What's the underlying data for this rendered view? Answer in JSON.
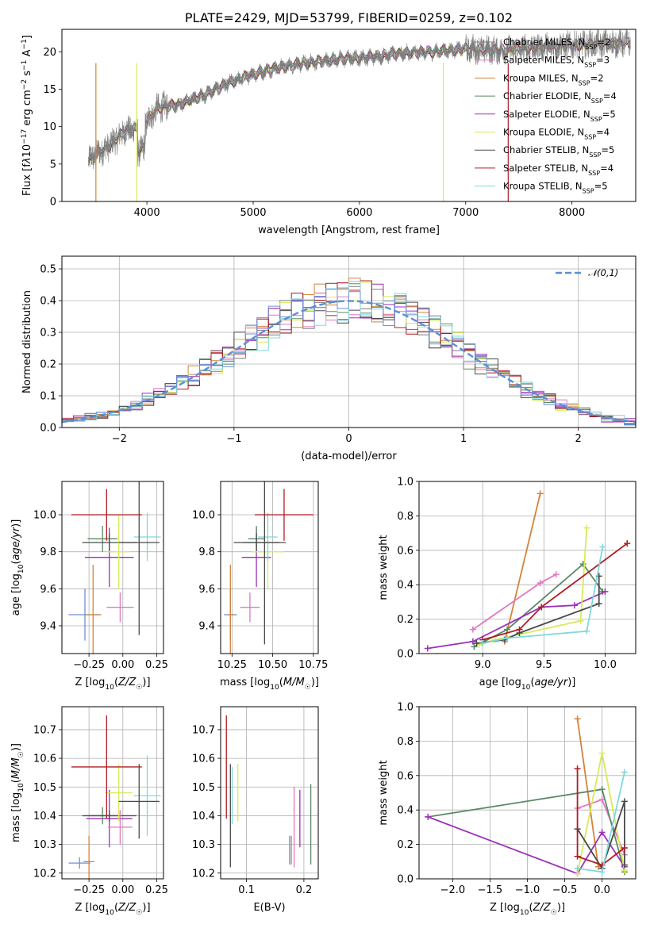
{
  "chart_data": [
    {
      "id": "spectrum",
      "type": "line",
      "title": "PLATE=2429, MJD=53799, FIBERID=0259, z=0.102",
      "xlabel": "wavelength [Angstrom, rest frame]",
      "ylabel": "Flux [f_λ10^-17 erg cm^-2 s^-1 A^-1]",
      "xlim": [
        3200,
        8600
      ],
      "ylim": [
        0,
        23
      ],
      "xticks": [
        4000,
        5000,
        6000,
        7000,
        8000
      ],
      "yticks": [
        0,
        5,
        10,
        15,
        20
      ],
      "legend_position": "upper-right",
      "data_color": "#7f7f7f",
      "data_range": [
        3450,
        8550
      ],
      "continuum": [
        [
          3450,
          5.5
        ],
        [
          3650,
          7.5
        ],
        [
          3800,
          9.5
        ],
        [
          3950,
          9.8
        ],
        [
          4100,
          12.5
        ],
        [
          4300,
          13
        ],
        [
          4500,
          14
        ],
        [
          4800,
          16
        ],
        [
          5000,
          17
        ],
        [
          5200,
          17.8
        ],
        [
          5500,
          18.5
        ],
        [
          5800,
          19
        ],
        [
          6100,
          19.3
        ],
        [
          6400,
          19.8
        ],
        [
          6700,
          20
        ],
        [
          7000,
          20.4
        ],
        [
          7300,
          20.2
        ],
        [
          7600,
          20.5
        ],
        [
          7900,
          20.8
        ],
        [
          8200,
          21
        ],
        [
          8550,
          21.2
        ]
      ],
      "series": [
        {
          "name": "Chabrier MILES, N_SSP=2",
          "color": "#7f7f7f"
        },
        {
          "name": "Salpeter MILES, N_SSP=3",
          "color": "#e377c2"
        },
        {
          "name": "Kroupa MILES, N_SSP=2",
          "color": "#d4833a"
        },
        {
          "name": "Chabrier ELODIE, N_SSP=4",
          "color": "#5a8a64"
        },
        {
          "name": "Salpeter ELODIE, N_SSP=5",
          "color": "#9a32b8"
        },
        {
          "name": "Kroupa ELODIE, N_SSP=4",
          "color": "#d8ea58"
        },
        {
          "name": "Chabrier STELIB, N_SSP=5",
          "color": "#4a4a4a"
        },
        {
          "name": "Salpeter STELIB, N_SSP=4",
          "color": "#b01c24"
        },
        {
          "name": "Kroupa STELIB, N_SSP=5",
          "color": "#7fd8dc"
        }
      ]
    },
    {
      "id": "residuals",
      "type": "histogram",
      "xlabel": "(data-model)/error",
      "ylabel": "Normed distribution",
      "xlim": [
        -2.5,
        2.5
      ],
      "ylim": [
        0,
        0.54
      ],
      "xticks": [
        -2,
        -1,
        0,
        1,
        2
      ],
      "yticks": [
        0.0,
        0.1,
        0.2,
        0.3,
        0.4,
        0.5
      ],
      "grid": true,
      "legend_position": "upper-right",
      "reference_curve": {
        "label": "𝒩(0,1)",
        "color": "#5b8fd6",
        "mean": 0,
        "sigma": 1
      },
      "bin_width": 0.1,
      "series_colors": [
        "#7f7f7f",
        "#e377c2",
        "#d4833a",
        "#5a8a64",
        "#9a32b8",
        "#d8ea58",
        "#4a4a4a",
        "#b01c24",
        "#7fd8dc",
        "#6f8fd8"
      ]
    },
    {
      "id": "age_vs_Z",
      "type": "errorbar",
      "xlabel": "Z [log10(Z/Z☉)]",
      "ylabel": "age  [log10(age/yr)]",
      "xlim": [
        -0.45,
        0.3
      ],
      "ylim": [
        9.25,
        10.18
      ],
      "xticks": [
        -0.25,
        0.0,
        0.25
      ],
      "xticklabels": [
        "−0.25",
        "0.00",
        "0.25"
      ],
      "yticks": [
        9.4,
        9.6,
        9.8,
        10.0
      ],
      "grid": true,
      "points": [
        {
          "x": -0.28,
          "xerr": 0.12,
          "y": 9.46,
          "yerr": 0.14,
          "color": "#6f8fd8"
        },
        {
          "x": -0.22,
          "xerr": 0.06,
          "y": 9.46,
          "yerr": 0.27,
          "color": "#d4833a"
        },
        {
          "x": -0.1,
          "xerr": 0.18,
          "y": 9.77,
          "yerr": 0.16,
          "color": "#9a32b8"
        },
        {
          "x": -0.15,
          "xerr": 0.11,
          "y": 9.87,
          "yerr": 0.07,
          "color": "#5a8a64"
        },
        {
          "x": -0.1,
          "xerr": 0.2,
          "y": 9.85,
          "yerr": 0.05,
          "color": "#4a4a4a"
        },
        {
          "x": -0.02,
          "xerr": 0.1,
          "y": 9.5,
          "yerr": 0.08,
          "color": "#e377c2"
        },
        {
          "x": -0.03,
          "xerr": 0.08,
          "y": 9.8,
          "yerr": 0.2,
          "color": "#d8ea58"
        },
        {
          "x": 0.18,
          "xerr": 0.1,
          "y": 9.88,
          "yerr": 0.13,
          "color": "#7fd8dc"
        },
        {
          "x": 0.12,
          "xerr": 0.15,
          "y": 9.85,
          "yerr": 0.5,
          "color": "#4a4a4a"
        },
        {
          "x": -0.12,
          "xerr": 0.26,
          "y": 10.0,
          "yerr": 0.14,
          "color": "#b01c24"
        }
      ]
    },
    {
      "id": "age_vs_mass",
      "type": "errorbar",
      "xlabel": "mass [log10(M/M☉)]",
      "ylabel": "",
      "xlim": [
        10.18,
        10.78
      ],
      "ylim": [
        9.25,
        10.18
      ],
      "xticks": [
        10.25,
        10.5,
        10.75
      ],
      "xticklabels": [
        "10.25",
        "10.50",
        "10.75"
      ],
      "yticks": [
        9.4,
        9.6,
        9.8,
        10.0
      ],
      "grid": true,
      "points": [
        {
          "x": 10.24,
          "xerr": 0.04,
          "y": 9.46,
          "yerr": 0.14,
          "color": "#6f8fd8"
        },
        {
          "x": 10.24,
          "xerr": 0.02,
          "y": 9.46,
          "yerr": 0.27,
          "color": "#d4833a"
        },
        {
          "x": 10.4,
          "xerr": 0.09,
          "y": 9.77,
          "yerr": 0.16,
          "color": "#9a32b8"
        },
        {
          "x": 10.4,
          "xerr": 0.05,
          "y": 9.87,
          "yerr": 0.07,
          "color": "#5a8a64"
        },
        {
          "x": 10.4,
          "xerr": 0.14,
          "y": 9.85,
          "yerr": 0.05,
          "color": "#4a4a4a"
        },
        {
          "x": 10.36,
          "xerr": 0.06,
          "y": 9.5,
          "yerr": 0.08,
          "color": "#e377c2"
        },
        {
          "x": 10.47,
          "xerr": 0.1,
          "y": 9.8,
          "yerr": 0.2,
          "color": "#d8ea58"
        },
        {
          "x": 10.47,
          "xerr": 0.06,
          "y": 9.88,
          "yerr": 0.13,
          "color": "#7fd8dc"
        },
        {
          "x": 10.45,
          "xerr": 0.13,
          "y": 9.85,
          "yerr": 0.55,
          "color": "#4a4a4a"
        },
        {
          "x": 10.57,
          "xerr": 0.18,
          "y": 10.0,
          "yerr": 0.14,
          "color": "#b01c24"
        }
      ]
    },
    {
      "id": "weight_vs_age",
      "type": "line",
      "xlabel": "age  [log10(age/yr)]",
      "ylabel": "mass weight",
      "xlim": [
        8.48,
        10.25
      ],
      "ylim": [
        0,
        1.0
      ],
      "xticks": [
        9.0,
        9.5,
        10.0
      ],
      "yticks": [
        0.0,
        0.2,
        0.4,
        0.6,
        0.8,
        1.0
      ],
      "grid": true,
      "series": [
        {
          "color": "#d4833a",
          "points": [
            [
              9.18,
              0.07
            ],
            [
              9.47,
              0.93
            ]
          ]
        },
        {
          "color": "#e377c2",
          "points": [
            [
              8.92,
              0.14
            ],
            [
              9.47,
              0.41
            ],
            [
              9.6,
              0.46
            ]
          ]
        },
        {
          "color": "#5a8a64",
          "points": [
            [
              8.93,
              0.04
            ],
            [
              9.2,
              0.14
            ],
            [
              9.82,
              0.52
            ],
            [
              9.98,
              0.36
            ]
          ]
        },
        {
          "color": "#9a32b8",
          "points": [
            [
              8.55,
              0.03
            ],
            [
              8.92,
              0.07
            ],
            [
              9.48,
              0.27
            ],
            [
              9.75,
              0.28
            ],
            [
              10.0,
              0.36
            ]
          ]
        },
        {
          "color": "#d8ea58",
          "points": [
            [
              8.97,
              0.05
            ],
            [
              9.1,
              0.08
            ],
            [
              9.8,
              0.19
            ],
            [
              9.85,
              0.73
            ]
          ]
        },
        {
          "color": "#4a4a4a",
          "points": [
            [
              8.95,
              0.06
            ],
            [
              9.18,
              0.08
            ],
            [
              9.3,
              0.12
            ],
            [
              9.95,
              0.29
            ],
            [
              9.95,
              0.45
            ]
          ]
        },
        {
          "color": "#b01c24",
          "points": [
            [
              9.0,
              0.08
            ],
            [
              9.3,
              0.14
            ],
            [
              9.48,
              0.27
            ],
            [
              10.18,
              0.64
            ]
          ]
        },
        {
          "color": "#7fd8dc",
          "points": [
            [
              9.0,
              0.06
            ],
            [
              9.2,
              0.09
            ],
            [
              9.85,
              0.13
            ],
            [
              9.98,
              0.62
            ]
          ]
        }
      ]
    },
    {
      "id": "mass_vs_Z",
      "type": "errorbar",
      "xlabel": "Z [log10(Z/Z☉)]",
      "ylabel": "mass [log10(M/M☉)]",
      "xlim": [
        -0.45,
        0.3
      ],
      "ylim": [
        10.18,
        10.78
      ],
      "xticks": [
        -0.25,
        0.0,
        0.25
      ],
      "xticklabels": [
        "−0.25",
        "0.00",
        "0.25"
      ],
      "yticks": [
        10.2,
        10.3,
        10.4,
        10.5,
        10.6,
        10.7
      ],
      "grid": true,
      "points": [
        {
          "x": -0.32,
          "xerr": 0.08,
          "y": 10.235,
          "yerr": 0.02,
          "color": "#6f8fd8"
        },
        {
          "x": -0.25,
          "xerr": 0.04,
          "y": 10.24,
          "yerr": 0.09,
          "color": "#d4833a"
        },
        {
          "x": -0.1,
          "xerr": 0.17,
          "y": 10.39,
          "yerr": 0.1,
          "color": "#9a32b8"
        },
        {
          "x": -0.15,
          "xerr": 0.11,
          "y": 10.4,
          "yerr": 0.03,
          "color": "#5a8a64"
        },
        {
          "x": -0.1,
          "xerr": 0.2,
          "y": 10.4,
          "yerr": 0.02,
          "color": "#4a4a4a"
        },
        {
          "x": -0.02,
          "xerr": 0.09,
          "y": 10.36,
          "yerr": 0.06,
          "color": "#e377c2"
        },
        {
          "x": -0.03,
          "xerr": 0.1,
          "y": 10.48,
          "yerr": 0.1,
          "color": "#d8ea58"
        },
        {
          "x": 0.18,
          "xerr": 0.1,
          "y": 10.47,
          "yerr": 0.14,
          "color": "#7fd8dc"
        },
        {
          "x": 0.12,
          "xerr": 0.15,
          "y": 10.45,
          "yerr": 0.13,
          "color": "#4a4a4a"
        },
        {
          "x": -0.12,
          "xerr": 0.26,
          "y": 10.57,
          "yerr": 0.18,
          "color": "#b01c24"
        }
      ]
    },
    {
      "id": "mass_vs_ebv",
      "type": "errorbar",
      "xlabel": "E(B-V)",
      "ylabel": "",
      "xlim": [
        0.055,
        0.225
      ],
      "ylim": [
        10.18,
        10.78
      ],
      "xticks": [
        0.1,
        0.2
      ],
      "xticklabels": [
        "0.1",
        "0.2"
      ],
      "yticks": [
        10.2,
        10.3,
        10.4,
        10.5,
        10.6,
        10.7
      ],
      "grid": true,
      "points": [
        {
          "x": 0.065,
          "xerr": 0,
          "y": 10.57,
          "yerr": 0.18,
          "color": "#b01c24"
        },
        {
          "x": 0.072,
          "xerr": 0,
          "y": 10.4,
          "yerr": 0.18,
          "color": "#4a4a4a"
        },
        {
          "x": 0.075,
          "xerr": 0,
          "y": 10.47,
          "yerr": 0.1,
          "color": "#7fd8dc"
        },
        {
          "x": 0.085,
          "xerr": 0,
          "y": 10.48,
          "yerr": 0.1,
          "color": "#d8ea58"
        },
        {
          "x": 0.175,
          "xerr": 0,
          "y": 10.28,
          "yerr": 0.05,
          "color": "#d4833a"
        },
        {
          "x": 0.178,
          "xerr": 0,
          "y": 10.28,
          "yerr": 0.05,
          "color": "#6f8fd8"
        },
        {
          "x": 0.183,
          "xerr": 0,
          "y": 10.36,
          "yerr": 0.14,
          "color": "#e377c2"
        },
        {
          "x": 0.193,
          "xerr": 0,
          "y": 10.39,
          "yerr": 0.1,
          "color": "#9a32b8"
        },
        {
          "x": 0.212,
          "xerr": 0,
          "y": 10.37,
          "yerr": 0.14,
          "color": "#5a8a64"
        }
      ]
    },
    {
      "id": "weight_vs_Z",
      "type": "line",
      "xlabel": "Z [log10(Z/Z☉)]",
      "ylabel": "mass weight",
      "xlim": [
        -2.45,
        0.45
      ],
      "ylim": [
        0,
        1.0
      ],
      "xticks": [
        -2.0,
        -1.5,
        -1.0,
        -0.5,
        0.0
      ],
      "xticklabels": [
        "−2.0",
        "−1.5",
        "−1.0",
        "−0.5",
        "0.0"
      ],
      "yticks": [
        0.0,
        0.2,
        0.4,
        0.6,
        0.8,
        1.0
      ],
      "grid": true,
      "series": [
        {
          "color": "#d4833a",
          "points": [
            [
              -0.33,
              0.93
            ],
            [
              -0.05,
              0.07
            ]
          ]
        },
        {
          "color": "#e377c2",
          "points": [
            [
              -0.33,
              0.41
            ],
            [
              0.0,
              0.46
            ],
            [
              0.3,
              0.14
            ]
          ]
        },
        {
          "color": "#5a8a64",
          "points": [
            [
              -2.33,
              0.36
            ],
            [
              0.0,
              0.52
            ],
            [
              0.3,
              0.04
            ]
          ]
        },
        {
          "color": "#9a32b8",
          "points": [
            [
              -2.33,
              0.36
            ],
            [
              -0.33,
              0.03
            ],
            [
              0.0,
              0.27
            ],
            [
              0.3,
              0.07
            ]
          ]
        },
        {
          "color": "#d8ea58",
          "points": [
            [
              -0.33,
              0.03
            ],
            [
              0.0,
              0.73
            ],
            [
              0.3,
              0.05
            ]
          ]
        },
        {
          "color": "#4a4a4a",
          "points": [
            [
              -0.33,
              0.29
            ],
            [
              0.0,
              0.06
            ],
            [
              0.3,
              0.45
            ],
            [
              0.3,
              0.08
            ]
          ]
        },
        {
          "color": "#b01c24",
          "points": [
            [
              -0.33,
              0.64
            ],
            [
              -0.33,
              0.13
            ],
            [
              0.0,
              0.08
            ],
            [
              0.3,
              0.18
            ]
          ]
        },
        {
          "color": "#7fd8dc",
          "points": [
            [
              -0.33,
              0.06
            ],
            [
              0.0,
              0.04
            ],
            [
              0.3,
              0.62
            ]
          ]
        }
      ]
    }
  ]
}
